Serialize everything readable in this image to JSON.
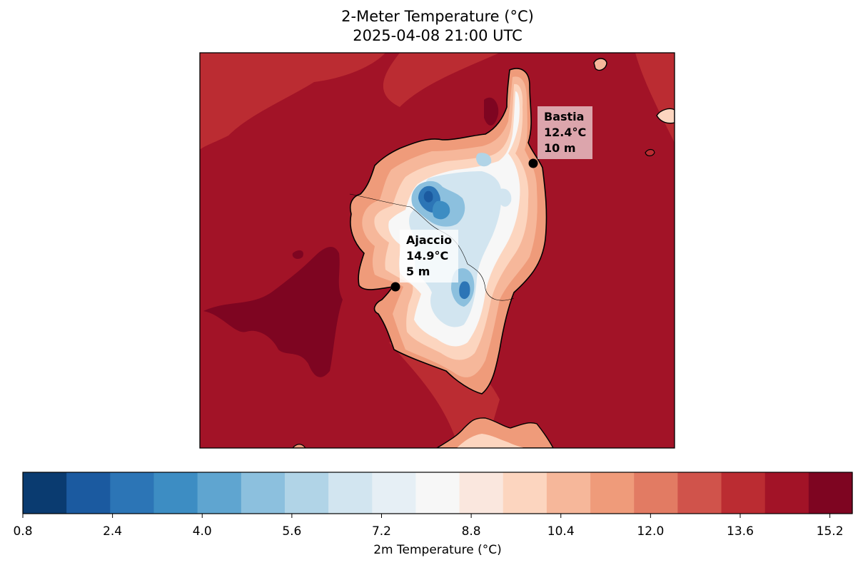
{
  "title": {
    "line1": "2-Meter Temperature (°C)",
    "line2": "2025-04-08 21:00 UTC"
  },
  "stations": [
    {
      "name": "Ajaccio",
      "temperature": "14.9°C",
      "elevation": "5 m"
    },
    {
      "name": "Bastia",
      "temperature": "12.4°C",
      "elevation": "10 m"
    }
  ],
  "colorbar": {
    "label": "2m Temperature (°C)",
    "tick_labels": [
      "0.8",
      "2.4",
      "4.0",
      "5.6",
      "7.2",
      "8.8",
      "10.4",
      "12.0",
      "13.6",
      "15.2"
    ],
    "tick_values": [
      0.8,
      2.4,
      4.0,
      5.6,
      7.2,
      8.8,
      10.4,
      12.0,
      13.6,
      15.2
    ],
    "range": [
      0.8,
      15.6
    ],
    "levels": 19,
    "colors": [
      "#0a3b70",
      "#1b5aa0",
      "#2c75b6",
      "#3d8dc3",
      "#5fa5d0",
      "#8cc0de",
      "#b1d4e7",
      "#d2e5f0",
      "#e6eff5",
      "#f7f7f7",
      "#fae7de",
      "#fcd5bf",
      "#f6b79a",
      "#ef9b7a",
      "#e27b63",
      "#d0534b",
      "#bb2c32",
      "#a21327",
      "#7e0521"
    ]
  },
  "colors": {
    "sea_warm": "#a21327",
    "sea_mid": "#bb2c32",
    "sea_hot": "#7e0521",
    "coast": "#000000"
  }
}
